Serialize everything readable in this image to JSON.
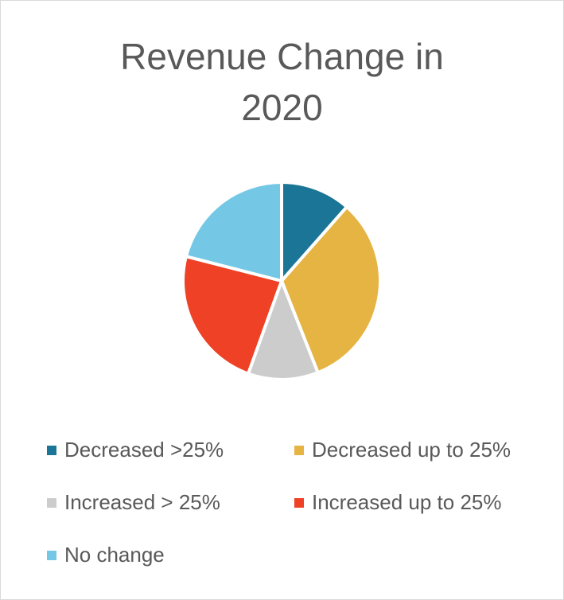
{
  "chart_data": {
    "type": "pie",
    "title_lines": [
      "Revenue Change in",
      "2020"
    ],
    "categories": [
      "Decreased >25%",
      "Decreased up to 25%",
      "Increased > 25%",
      "Increased up to 25%",
      "No change"
    ],
    "values": [
      11.5,
      32.5,
      11.5,
      23.5,
      21
    ],
    "colors": [
      "#1b7597",
      "#e6b443",
      "#cccccc",
      "#ef4125",
      "#74c8e6"
    ],
    "legend_position": "bottom"
  }
}
